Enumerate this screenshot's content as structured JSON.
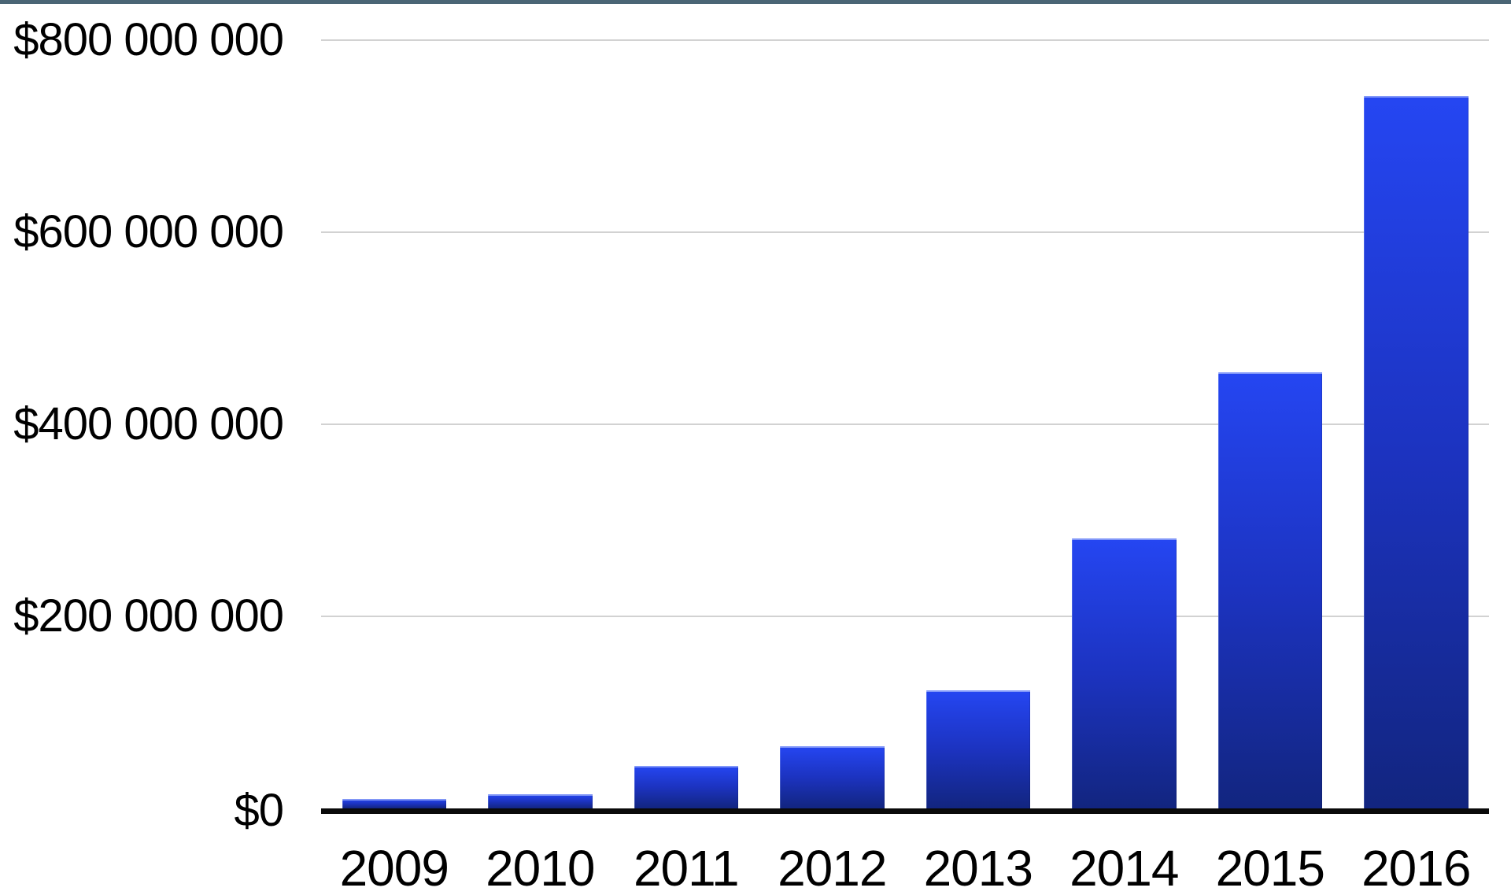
{
  "chart_data": {
    "type": "bar",
    "title": "",
    "xlabel": "",
    "ylabel": "",
    "categories": [
      "2009",
      "2010",
      "2011",
      "2012",
      "2013",
      "2014",
      "2015",
      "2016"
    ],
    "values": [
      10000000,
      15000000,
      44000000,
      65000000,
      123000000,
      281000000,
      454000000,
      742000000
    ],
    "ylim": [
      0,
      800000000
    ],
    "yticks": [
      0,
      200000000,
      400000000,
      600000000,
      800000000
    ],
    "ytick_labels": [
      "$0",
      "$200 000 000",
      "$400 000 000",
      "$600 000 000",
      "$800 000 000"
    ],
    "grid": true,
    "legend": false,
    "bar_gradient_top": "#2546f2",
    "bar_gradient_mid": "#1c33c0",
    "bar_gradient_bottom": "#12257f"
  },
  "colors": {
    "top_border": "#4a6575",
    "gridline": "#d2d2d2",
    "axis": "#0a0a0a",
    "background": "#ffffff",
    "label_text": "#000000"
  }
}
